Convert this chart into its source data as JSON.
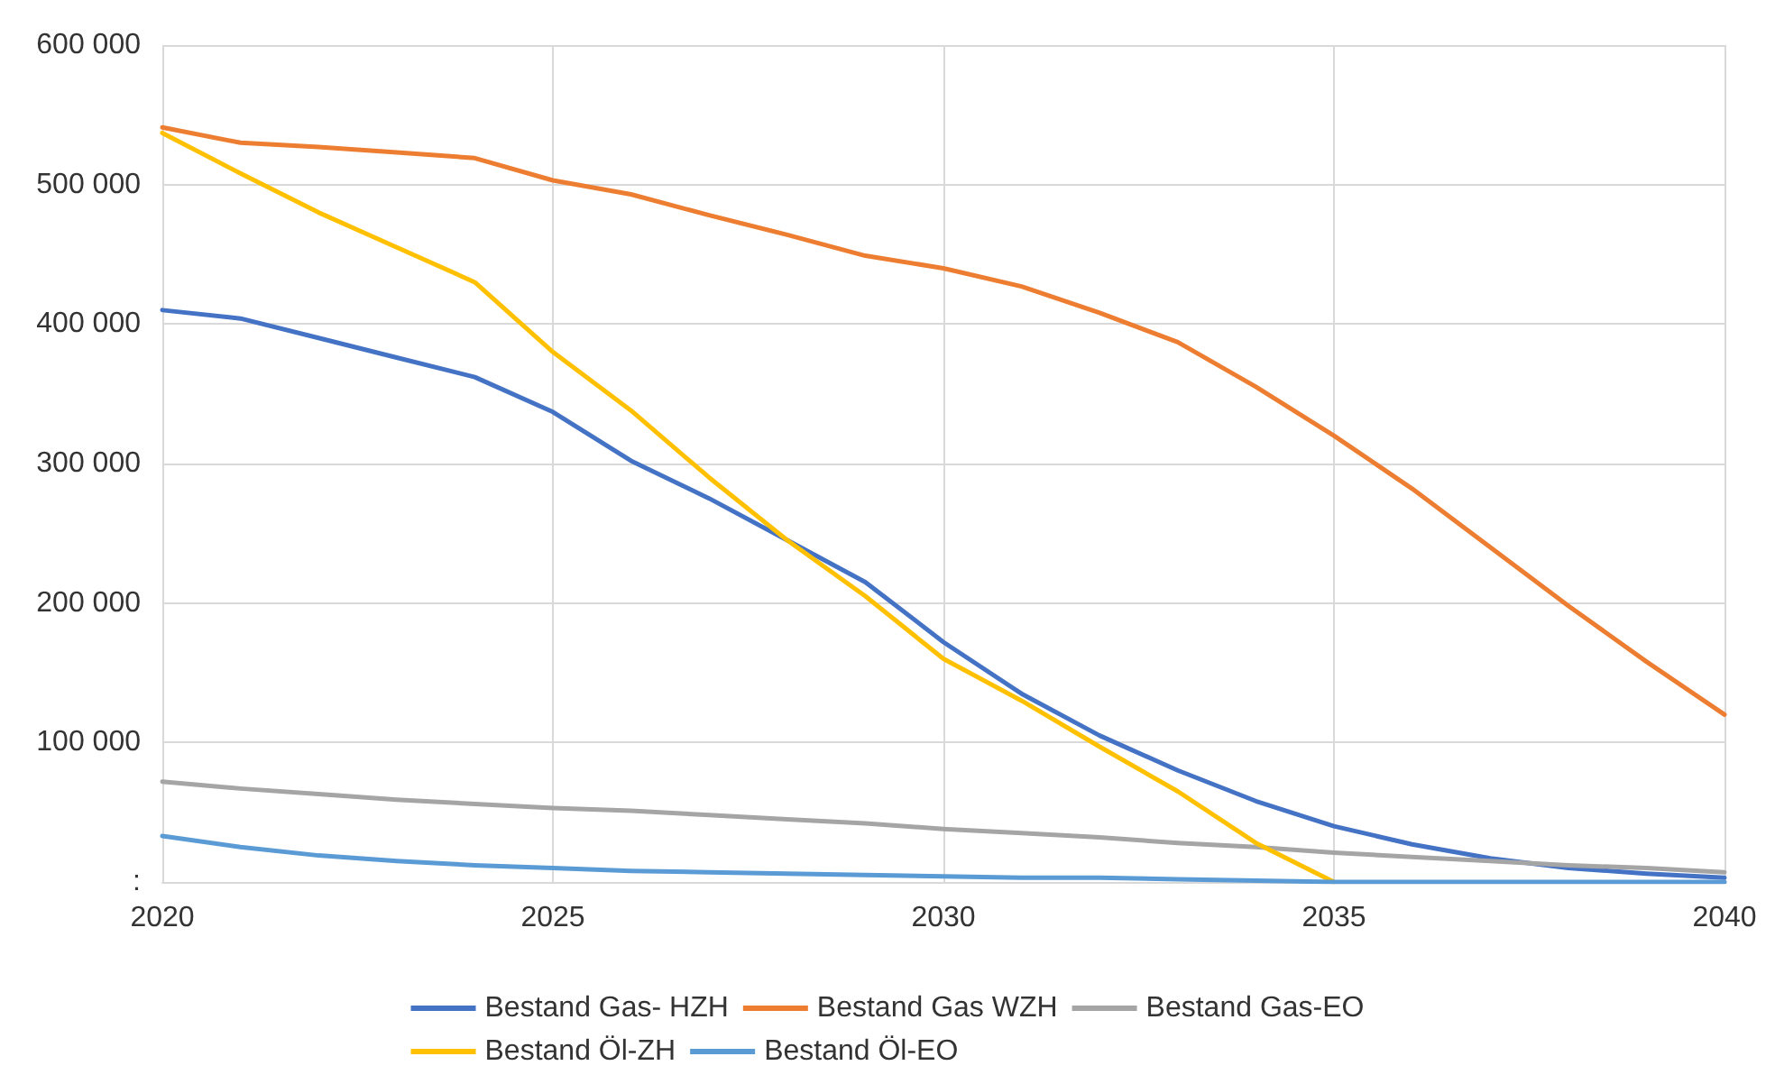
{
  "chart_data": {
    "type": "line",
    "x": [
      2020,
      2021,
      2022,
      2023,
      2024,
      2025,
      2026,
      2027,
      2028,
      2029,
      2030,
      2031,
      2032,
      2033,
      2034,
      2035,
      2036,
      2037,
      2038,
      2039,
      2040
    ],
    "series": [
      {
        "name": "Bestand Gas- HZH",
        "color": "#4472c4",
        "values": [
          410000,
          404000,
          390000,
          376000,
          362000,
          337000,
          302000,
          275000,
          245000,
          215000,
          172000,
          135000,
          105000,
          80000,
          58000,
          40000,
          27000,
          17000,
          10000,
          6000,
          3000
        ]
      },
      {
        "name": "Bestand Gas WZH",
        "color": "#ed7d31",
        "values": [
          541000,
          530000,
          527000,
          523000,
          519000,
          503000,
          493000,
          478000,
          464000,
          449000,
          440000,
          427000,
          408000,
          387000,
          355000,
          320000,
          282000,
          240000,
          198000,
          158000,
          120000
        ]
      },
      {
        "name": "Bestand Gas-EO",
        "color": "#a5a5a5",
        "values": [
          72000,
          67000,
          63000,
          59000,
          56000,
          53000,
          51000,
          48000,
          45000,
          42000,
          38000,
          35000,
          32000,
          28000,
          25000,
          21000,
          18000,
          15000,
          12000,
          10000,
          7000
        ]
      },
      {
        "name": "Bestand Öl-ZH",
        "color": "#ffc000",
        "values": [
          537000,
          508000,
          480000,
          455000,
          430000,
          380000,
          338000,
          290000,
          245000,
          205000,
          160000,
          130000,
          97000,
          65000,
          28000,
          0,
          null,
          null,
          null,
          null,
          null
        ]
      },
      {
        "name": "Bestand Öl-EO",
        "color": "#5b9bd5",
        "values": [
          33000,
          25000,
          19000,
          15000,
          12000,
          10000,
          8000,
          7000,
          6000,
          5000,
          4000,
          3000,
          3000,
          2000,
          1000,
          0,
          0,
          0,
          0,
          0,
          0
        ]
      }
    ],
    "xlim": [
      2020,
      2040
    ],
    "xticks": [
      2020,
      2025,
      2030,
      2035,
      2040
    ],
    "ylim": [
      0,
      600000
    ],
    "yticks": [
      {
        "value": 0,
        "label": ":"
      },
      {
        "value": 100000,
        "label": "100 000"
      },
      {
        "value": 200000,
        "label": "200 000"
      },
      {
        "value": 300000,
        "label": "300 000"
      },
      {
        "value": 400000,
        "label": "400 000"
      },
      {
        "value": 500000,
        "label": "500 000"
      },
      {
        "value": 600000,
        "label": "600 000"
      }
    ],
    "grid": true,
    "legend": "bottom",
    "marker": "none",
    "line_style": "solid"
  }
}
